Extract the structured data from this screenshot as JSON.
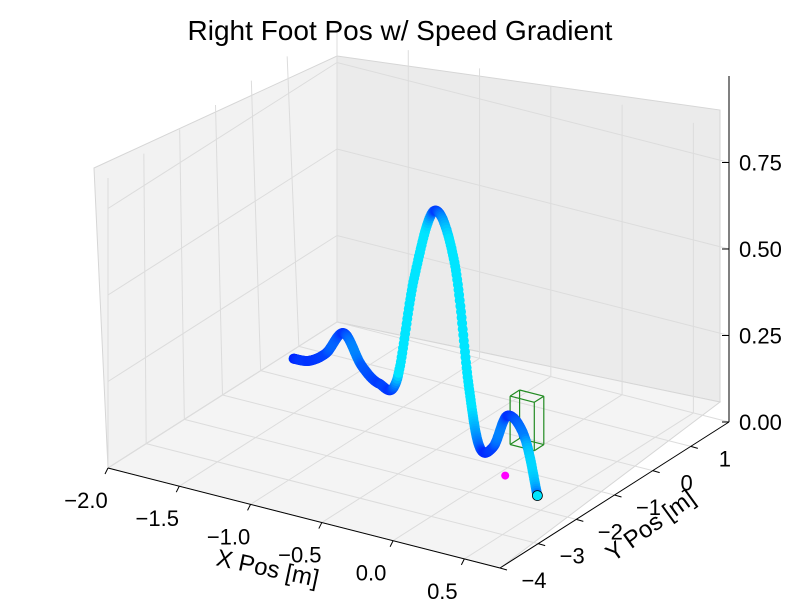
{
  "chart_data": {
    "type": "scatter",
    "projection": "3d",
    "title": "Right Foot Pos w/ Speed Gradient",
    "xlabel": "X Pos [m]",
    "ylabel": "Y Pos [m]",
    "zlabel": "",
    "xlim": [
      -2.0,
      0.75
    ],
    "ylim": [
      -4.0,
      2.0
    ],
    "zlim": [
      0.0,
      1.0
    ],
    "x_ticks": [
      "−2.0",
      "−1.5",
      "−1.0",
      "−0.5",
      "0.0",
      "0.5"
    ],
    "y_ticks": [
      "−4",
      "−3",
      "−2",
      "−1",
      "0",
      "1"
    ],
    "z_ticks": [
      "0.00",
      "0.25",
      "0.50",
      "0.75"
    ],
    "grid": true,
    "colormap": [
      "#0000ff",
      "#00e5ff"
    ],
    "colormap_meaning": "speed",
    "series": [
      {
        "values": [
          {
            "x": -1.93,
            "y": 0.6,
            "z": 0.0
          },
          {
            "x": -1.78,
            "y": 0.45,
            "z": 0.02
          },
          {
            "x": -1.62,
            "y": 0.3,
            "z": 0.07
          },
          {
            "x": -1.47,
            "y": 0.2,
            "z": 0.15
          },
          {
            "x": -1.32,
            "y": 0.1,
            "z": 0.08
          },
          {
            "x": -1.17,
            "y": 0.0,
            "z": 0.05
          },
          {
            "x": -1.02,
            "y": -0.1,
            "z": 0.08
          },
          {
            "x": -0.87,
            "y": -0.2,
            "z": 0.4
          },
          {
            "x": -0.7,
            "y": -0.3,
            "z": 0.62
          },
          {
            "x": -0.52,
            "y": -0.45,
            "z": 0.5
          },
          {
            "x": -0.38,
            "y": -0.6,
            "z": 0.17
          },
          {
            "x": -0.25,
            "y": -0.8,
            "z": 0.02
          },
          {
            "x": -0.1,
            "y": -1.0,
            "z": 0.05
          },
          {
            "x": 0.08,
            "y": -1.3,
            "z": 0.18
          },
          {
            "x": 0.28,
            "y": -1.6,
            "z": 0.16
          },
          {
            "x": 0.45,
            "y": -1.9,
            "z": 0.03
          }
        ]
      }
    ],
    "annotations": [
      "start-marker",
      "end-marker",
      "bounding-box"
    ],
    "markers": {
      "start_color": "#ff00ff",
      "end_color": "#00e5ff"
    },
    "box_color": "#228b22"
  }
}
